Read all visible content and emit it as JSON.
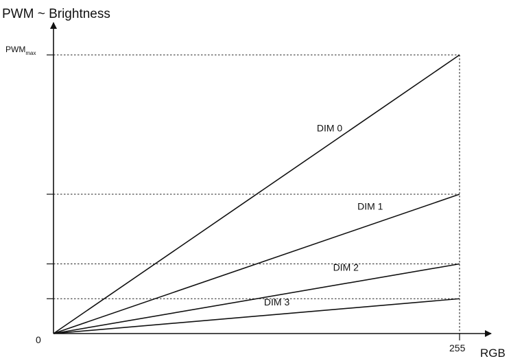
{
  "chart_data": {
    "type": "line",
    "title": "",
    "ylabel": "PWM ~ Brightness",
    "xlabel": "RGB",
    "origin_label": "0",
    "x_tick_label": "255",
    "y_tick_label": {
      "base": "PWM",
      "sub": "max"
    },
    "xlim": [
      0,
      255
    ],
    "ylim": [
      0,
      1
    ],
    "grid": false,
    "reference_levels": [
      1,
      0.5,
      0.25,
      0.125
    ],
    "series": [
      {
        "name": "DIM 0",
        "x": [
          0,
          255
        ],
        "y": [
          0,
          1
        ]
      },
      {
        "name": "DIM 1",
        "x": [
          0,
          255
        ],
        "y": [
          0,
          0.5
        ]
      },
      {
        "name": "DIM 2",
        "x": [
          0,
          255
        ],
        "y": [
          0,
          0.25
        ]
      },
      {
        "name": "DIM 3",
        "x": [
          0,
          255
        ],
        "y": [
          0,
          0.125
        ]
      }
    ],
    "colors": {
      "line": "#111111",
      "guide": "#222222"
    }
  }
}
